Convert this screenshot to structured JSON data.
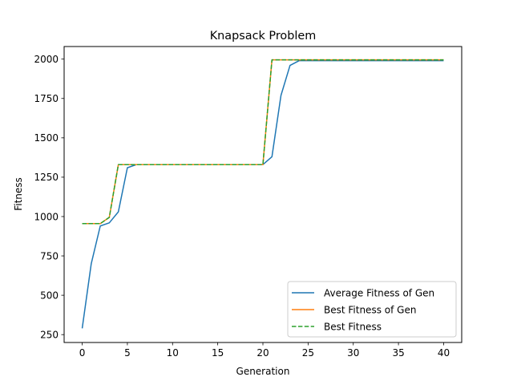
{
  "chart_data": {
    "type": "line",
    "title": "Knapsack Problem",
    "xlabel": "Generation",
    "ylabel": "Fitness",
    "xlim": [
      -2,
      42
    ],
    "ylim": [
      200,
      2080
    ],
    "xticks": [
      0,
      5,
      10,
      15,
      20,
      25,
      30,
      35,
      40
    ],
    "yticks": [
      250,
      500,
      750,
      1000,
      1250,
      1500,
      1750,
      2000
    ],
    "x": [
      0,
      1,
      2,
      3,
      4,
      5,
      6,
      7,
      8,
      9,
      10,
      11,
      12,
      13,
      14,
      15,
      16,
      17,
      18,
      19,
      20,
      21,
      22,
      23,
      24,
      25,
      26,
      27,
      28,
      29,
      30,
      31,
      32,
      33,
      34,
      35,
      36,
      37,
      38,
      39,
      40
    ],
    "series": [
      {
        "name": "Average Fitness of Gen",
        "color": "#1f77b4",
        "style": "solid",
        "values": [
          290,
          700,
          940,
          960,
          1030,
          1310,
          1330,
          1330,
          1330,
          1330,
          1330,
          1330,
          1330,
          1330,
          1330,
          1330,
          1330,
          1330,
          1330,
          1330,
          1330,
          1380,
          1770,
          1960,
          1990,
          1990,
          1990,
          1990,
          1990,
          1990,
          1990,
          1990,
          1990,
          1990,
          1990,
          1990,
          1990,
          1990,
          1990,
          1990,
          1990
        ]
      },
      {
        "name": "Best Fitness of Gen",
        "color": "#ff7f0e",
        "style": "solid",
        "values": [
          955,
          955,
          955,
          995,
          1330,
          1330,
          1330,
          1330,
          1330,
          1330,
          1330,
          1330,
          1330,
          1330,
          1330,
          1330,
          1330,
          1330,
          1330,
          1330,
          1330,
          1995,
          1995,
          1995,
          1995,
          1995,
          1995,
          1995,
          1995,
          1995,
          1995,
          1995,
          1995,
          1995,
          1995,
          1995,
          1995,
          1995,
          1995,
          1995,
          1995
        ]
      },
      {
        "name": "Best Fitness",
        "color": "#2ca02c",
        "style": "dashed",
        "values": [
          955,
          955,
          955,
          995,
          1330,
          1330,
          1330,
          1330,
          1330,
          1330,
          1330,
          1330,
          1330,
          1330,
          1330,
          1330,
          1330,
          1330,
          1330,
          1330,
          1330,
          1995,
          1995,
          1995,
          1995,
          1995,
          1995,
          1995,
          1995,
          1995,
          1995,
          1995,
          1995,
          1995,
          1995,
          1995,
          1995,
          1995,
          1995,
          1995,
          1995
        ]
      }
    ],
    "legend": {
      "placement": "bottom-right"
    },
    "grid": false
  }
}
